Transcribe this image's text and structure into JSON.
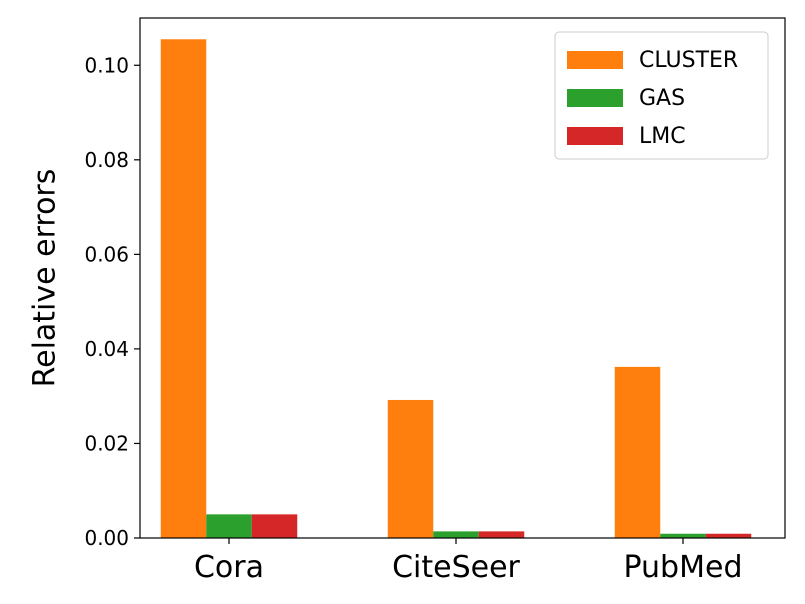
{
  "chart_data": {
    "type": "bar",
    "categories": [
      "Cora",
      "CiteSeer",
      "PubMed"
    ],
    "series": [
      {
        "name": "CLUSTER",
        "color": "#ff7f0e",
        "values": [
          0.1055,
          0.0292,
          0.0362
        ]
      },
      {
        "name": "GAS",
        "color": "#2ca02c",
        "values": [
          0.005,
          0.0014,
          0.0009
        ]
      },
      {
        "name": "LMC",
        "color": "#d62728",
        "values": [
          0.005,
          0.0014,
          0.0009
        ]
      }
    ],
    "ylabel": "Relative errors",
    "xlabel": "",
    "title": "",
    "ylim": [
      0,
      0.11
    ],
    "yticks": [
      0.0,
      0.02,
      0.04,
      0.06,
      0.08,
      0.1
    ],
    "ytick_labels": [
      "0.00",
      "0.02",
      "0.04",
      "0.06",
      "0.08",
      "0.10"
    ],
    "grid": false,
    "legend_position": "top-right"
  }
}
